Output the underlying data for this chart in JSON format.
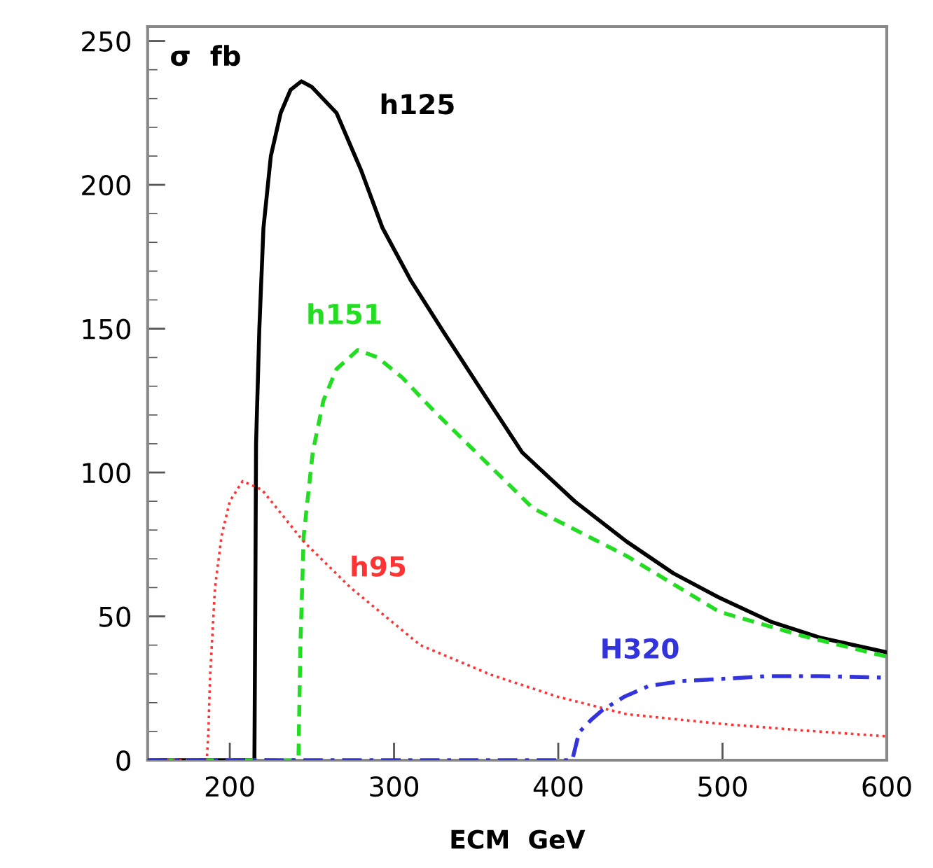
{
  "chart_data": {
    "type": "line",
    "ylabel": "σ  fb",
    "xlabel": "ECM  GeV",
    "xlim": [
      150,
      600
    ],
    "xticks": [
      200,
      300,
      400,
      500,
      600
    ],
    "ylim": [
      0,
      255
    ],
    "yticks": [
      0,
      50,
      100,
      150,
      200,
      250
    ],
    "grid": false,
    "legend": false,
    "marker": "none",
    "series": [
      {
        "name": "h125",
        "color": "#000000",
        "line_style": "solid",
        "x": [
          150,
          215,
          215.5,
          216,
          218,
          220.5,
          225,
          231,
          237,
          243.6,
          250,
          265,
          280,
          293,
          310,
          330,
          355,
          378,
          410,
          441.6,
          470,
          498,
          530,
          560,
          600
        ],
        "values": [
          0,
          0,
          50,
          110,
          150,
          185,
          210,
          225,
          233,
          236,
          234,
          225,
          205,
          185,
          167,
          149,
          127,
          107,
          90,
          76,
          65,
          56.5,
          48,
          42.5,
          37.5
        ]
      },
      {
        "name": "h151",
        "color": "#22dd22",
        "line_style": "dashed",
        "x": [
          150,
          241.8,
          243,
          245,
          250.5,
          257,
          265,
          278,
          290,
          305,
          325,
          350,
          384.5,
          441.6,
          498,
          550,
          600
        ],
        "values": [
          0,
          0,
          40,
          78,
          107,
          125,
          136,
          142.6,
          140,
          133,
          121,
          107,
          87.6,
          71,
          51.6,
          43,
          36
        ]
      },
      {
        "name": "h95",
        "color": "#ff3333",
        "line_style": "dotted",
        "x": [
          150,
          186,
          187,
          188,
          191,
          195,
          200,
          207.8,
          219.6,
          245,
          273.5,
          316,
          359,
          400,
          441.6,
          498,
          550,
          600
        ],
        "values": [
          0,
          0,
          10,
          29,
          60,
          78,
          90,
          97,
          94,
          76,
          60,
          40,
          29.7,
          22,
          16,
          12.7,
          10.3,
          8.3
        ]
      },
      {
        "name": "H320",
        "color": "#3333dd",
        "line_style": "dashdot",
        "x": [
          150,
          408.5,
          412.7,
          420,
          427,
          440,
          455,
          475,
          498,
          527,
          560,
          600
        ],
        "values": [
          0,
          0,
          9.7,
          14,
          17.5,
          22,
          25.8,
          27.5,
          28.2,
          29.2,
          29.2,
          28.7
        ]
      }
    ]
  }
}
